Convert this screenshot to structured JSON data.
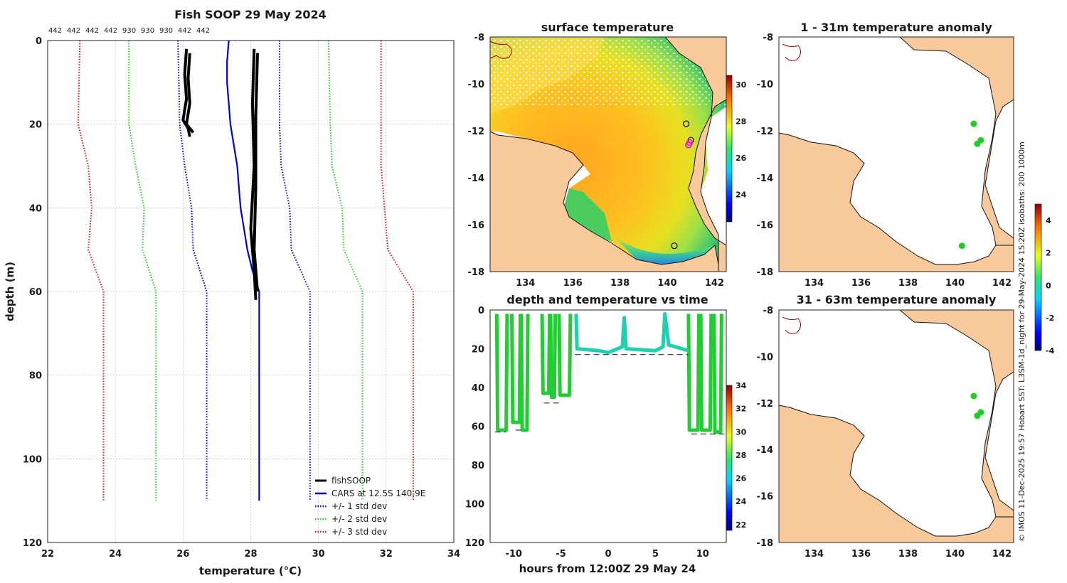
{
  "chart_data": [
    {
      "type": "line",
      "title": "Fish SOOP 29 May 2024",
      "xlabel": "temperature (°C)",
      "ylabel": "depth (m)",
      "xlim": [
        22,
        34
      ],
      "ylim": [
        0,
        120
      ],
      "xticks": [
        22,
        24,
        26,
        28,
        30,
        32,
        34
      ],
      "yticks": [
        0,
        20,
        40,
        60,
        80,
        100,
        120
      ],
      "top_labels": [
        "442",
        "442",
        "442",
        "442",
        "930",
        "930",
        "930",
        "442",
        "442"
      ],
      "legend": [
        "fishSOOP",
        "CARS at 12.5S 140.9E",
        "+/- 1 std dev",
        "+/- 2 std dev",
        "+/- 3 std dev"
      ],
      "series": [
        {
          "name": "CARS",
          "color": "#0000dd",
          "style": "solid",
          "points": [
            [
              27.35,
              0
            ],
            [
              27.3,
              5
            ],
            [
              27.3,
              10
            ],
            [
              27.35,
              15
            ],
            [
              27.4,
              20
            ],
            [
              27.5,
              25
            ],
            [
              27.6,
              30
            ],
            [
              27.65,
              35
            ],
            [
              27.7,
              40
            ],
            [
              27.8,
              45
            ],
            [
              27.9,
              50
            ],
            [
              28.05,
              55
            ],
            [
              28.25,
              60
            ],
            [
              28.25,
              80
            ],
            [
              28.25,
              110
            ]
          ]
        },
        {
          "name": "-1 std",
          "color": "#0000dd",
          "style": "dotted",
          "points": [
            [
              25.85,
              0
            ],
            [
              25.9,
              20
            ],
            [
              26.05,
              30
            ],
            [
              26.25,
              40
            ],
            [
              26.3,
              50
            ],
            [
              26.7,
              60
            ],
            [
              26.7,
              110
            ]
          ]
        },
        {
          "name": "+1 std",
          "color": "#0000dd",
          "style": "dotted",
          "points": [
            [
              28.85,
              0
            ],
            [
              28.85,
              20
            ],
            [
              28.9,
              30
            ],
            [
              29.15,
              40
            ],
            [
              29.2,
              50
            ],
            [
              29.75,
              60
            ],
            [
              29.75,
              110
            ]
          ]
        },
        {
          "name": "-2 std",
          "color": "#22cc22",
          "style": "dotted",
          "points": [
            [
              24.4,
              0
            ],
            [
              24.4,
              20
            ],
            [
              24.6,
              30
            ],
            [
              24.85,
              40
            ],
            [
              24.8,
              50
            ],
            [
              25.2,
              60
            ],
            [
              25.2,
              110
            ]
          ]
        },
        {
          "name": "+2 std",
          "color": "#22cc22",
          "style": "dotted",
          "points": [
            [
              30.3,
              0
            ],
            [
              30.35,
              20
            ],
            [
              30.4,
              30
            ],
            [
              30.7,
              40
            ],
            [
              30.75,
              50
            ],
            [
              31.3,
              60
            ],
            [
              31.3,
              110
            ]
          ]
        },
        {
          "name": "-3 std",
          "color": "#dd1111",
          "style": "dotted",
          "points": [
            [
              22.95,
              0
            ],
            [
              22.9,
              20
            ],
            [
              23.2,
              30
            ],
            [
              23.3,
              40
            ],
            [
              23.2,
              50
            ],
            [
              23.65,
              60
            ],
            [
              23.65,
              110
            ]
          ]
        },
        {
          "name": "+3 std",
          "color": "#dd1111",
          "style": "dotted",
          "points": [
            [
              31.85,
              0
            ],
            [
              31.85,
              20
            ],
            [
              31.85,
              30
            ],
            [
              31.95,
              40
            ],
            [
              32.05,
              50
            ],
            [
              32.8,
              60
            ],
            [
              32.8,
              110
            ]
          ]
        }
      ],
      "fishsoop_profiles": [
        [
          [
            26.1,
            2
          ],
          [
            26.05,
            8
          ],
          [
            26.1,
            14
          ],
          [
            26.0,
            19
          ],
          [
            26.15,
            21
          ],
          [
            26.2,
            23
          ]
        ],
        [
          [
            26.2,
            3
          ],
          [
            26.15,
            9
          ],
          [
            26.2,
            15
          ],
          [
            26.1,
            20
          ],
          [
            26.3,
            22
          ]
        ],
        [
          [
            28.1,
            2
          ],
          [
            28.05,
            15
          ],
          [
            28.1,
            30
          ],
          [
            28.0,
            45
          ],
          [
            28.1,
            55
          ],
          [
            28.15,
            62
          ]
        ],
        [
          [
            28.2,
            3
          ],
          [
            28.15,
            18
          ],
          [
            28.15,
            35
          ],
          [
            28.1,
            50
          ],
          [
            28.2,
            60
          ]
        ]
      ]
    },
    {
      "type": "heatmap",
      "title": "surface temperature",
      "xlim": [
        132.5,
        142.5
      ],
      "ylim": [
        -18,
        -8
      ],
      "xticks": [
        134,
        136,
        138,
        140,
        142
      ],
      "yticks": [
        -8,
        -10,
        -12,
        -14,
        -16,
        -18
      ],
      "colorbar": {
        "range": [
          22.5,
          30.5
        ],
        "ticks": [
          24,
          26,
          28,
          30
        ]
      },
      "markers": [
        [
          140.8,
          -11.7
        ],
        [
          141.0,
          -12.4
        ],
        [
          140.3,
          -16.9
        ]
      ],
      "highlight_markers": [
        [
          140.95,
          -12.5
        ],
        [
          140.9,
          -12.6
        ]
      ]
    },
    {
      "type": "heatmap",
      "title": "1 - 31m temperature anomaly",
      "xlim": [
        132.5,
        142.5
      ],
      "ylim": [
        -18,
        -8
      ],
      "xticks": [
        134,
        136,
        138,
        140,
        142
      ],
      "yticks": [
        -8,
        -10,
        -12,
        -14,
        -16,
        -18
      ],
      "points": [
        [
          140.8,
          -11.7
        ],
        [
          141.1,
          -12.4
        ],
        [
          140.95,
          -12.55
        ],
        [
          140.3,
          -16.9
        ]
      ]
    },
    {
      "type": "heatmap",
      "title": "31 - 63m temperature anomaly",
      "xlim": [
        132.5,
        142.5
      ],
      "ylim": [
        -18,
        -8
      ],
      "xticks": [
        134,
        136,
        138,
        140,
        142
      ],
      "yticks": [
        -8,
        -10,
        -12,
        -14,
        -16,
        -18
      ],
      "points": [
        [
          140.8,
          -11.7
        ],
        [
          141.1,
          -12.4
        ],
        [
          140.95,
          -12.55
        ]
      ],
      "colorbar": {
        "range": [
          -4,
          5
        ],
        "ticks": [
          -4,
          -2,
          0,
          2,
          4
        ]
      }
    },
    {
      "type": "scatter",
      "title": "depth and temperature vs time",
      "xlabel": "hours from 12:00Z 29 May 24",
      "xlim": [
        -12.5,
        12.5
      ],
      "ylim": [
        0,
        120
      ],
      "xticks": [
        -10,
        -5,
        0,
        5,
        10
      ],
      "yticks": [
        0,
        20,
        40,
        60,
        80,
        100,
        120
      ],
      "colorbar": {
        "range": [
          21.5,
          34
        ],
        "ticks": [
          22,
          24,
          26,
          28,
          30,
          32,
          34
        ]
      },
      "profiles": [
        {
          "start": -11.8,
          "end": -10.7,
          "max": 62
        },
        {
          "start": -10.2,
          "end": -9.3,
          "max": 58
        },
        {
          "start": -9.2,
          "end": -8.5,
          "max": 62
        },
        {
          "start": -7.0,
          "end": -6.2,
          "max": 43
        },
        {
          "start": -6.1,
          "end": -5.6,
          "max": 45
        },
        {
          "start": -5.2,
          "end": -4.0,
          "max": 44
        },
        {
          "start": 8.5,
          "end": 9.6,
          "max": 62
        },
        {
          "start": 9.8,
          "end": 10.9,
          "max": 62
        },
        {
          "start": 11.2,
          "end": 12.0,
          "max": 63
        }
      ],
      "dashes": [
        [
          -12,
          -10.8,
          63
        ],
        [
          -9.8,
          -8.8,
          62
        ],
        [
          -6.8,
          -5.0,
          48
        ],
        [
          -3.5,
          8.5,
          23
        ],
        [
          8.8,
          12.3,
          64
        ]
      ]
    }
  ],
  "side_text": "© IMOS 11-Dec-2025 19:57 Hobart SST: L3SM-1d_night for 29-May-2024 15:20Z isobaths: 200  1000m",
  "colors": {
    "land": "#f8c99a",
    "series_black": "#000000",
    "cars": "#0000dd",
    "green": "#22cc22",
    "red": "#dd1111",
    "anomaly_point": "#22cc22"
  }
}
